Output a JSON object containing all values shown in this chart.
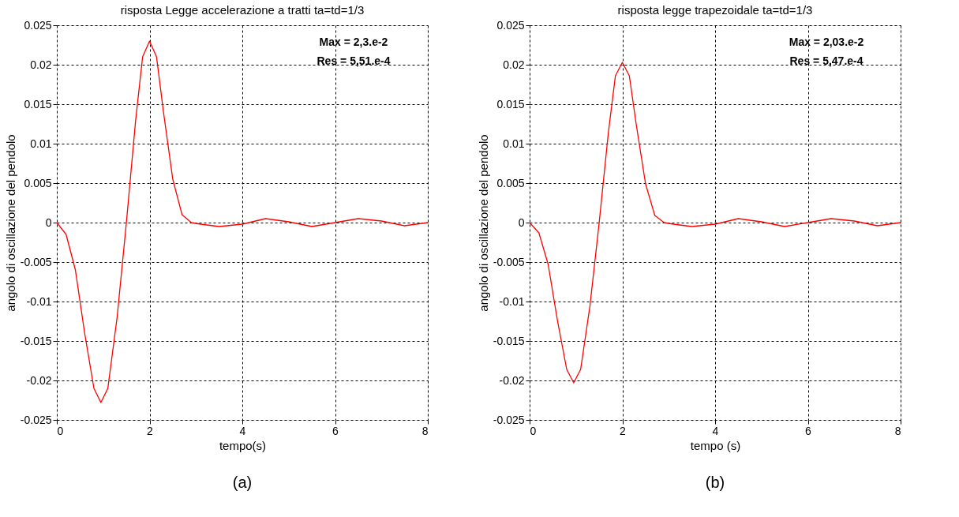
{
  "chart_data": [
    {
      "type": "line",
      "title": "risposta Legge accelerazione  a tratti ta=td=1/3",
      "xlabel": "tempo(s)",
      "ylabel": "angolo di oscillazione del pendolo",
      "x": [
        0,
        0.2,
        0.4,
        0.6,
        0.8,
        0.95,
        1.1,
        1.3,
        1.5,
        1.7,
        1.85,
        2.0,
        2.15,
        2.3,
        2.5,
        2.7,
        2.9,
        3.1,
        3.5,
        4.0,
        4.5,
        5.0,
        5.5,
        6.0,
        6.5,
        7.0,
        7.5,
        8.0
      ],
      "series": [
        {
          "color": "#ff0000",
          "values": [
            0,
            -0.0015,
            -0.006,
            -0.014,
            -0.021,
            -0.0228,
            -0.021,
            -0.012,
            0,
            0.013,
            0.021,
            0.023,
            0.021,
            0.014,
            0.0055,
            0.001,
            0,
            -0.0002,
            -0.0005,
            -0.0002,
            0.0005,
            0.0001,
            -0.0005,
            0,
            0.0005,
            0.0002,
            -0.0004,
            0
          ]
        }
      ],
      "xlim": [
        0,
        8
      ],
      "xticks": [
        0,
        2,
        4,
        6,
        8
      ],
      "ylim": [
        -0.025,
        0.025
      ],
      "yticks": [
        -0.025,
        -0.02,
        -0.015,
        -0.01,
        -0.005,
        0,
        0.005,
        0.01,
        0.015,
        0.02,
        0.025
      ],
      "grid": true,
      "line_style": "solid",
      "annotations": [
        "Max = 2,3.e-2",
        "Res = 5,51.e-4",
        "(a)"
      ]
    },
    {
      "type": "line",
      "title": "risposta legge trapezoidale ta=td=1/3",
      "xlabel": "tempo (s)",
      "ylabel": "angolo di oscillazione del pendolo",
      "x": [
        0,
        0.2,
        0.4,
        0.6,
        0.8,
        0.95,
        1.1,
        1.3,
        1.5,
        1.7,
        1.85,
        2.0,
        2.15,
        2.3,
        2.5,
        2.7,
        2.9,
        3.1,
        3.5,
        4.0,
        4.5,
        5.0,
        5.5,
        6.0,
        6.5,
        7.0,
        7.5,
        8.0
      ],
      "series": [
        {
          "color": "#ff0000",
          "values": [
            0,
            -0.0013,
            -0.0053,
            -0.0124,
            -0.0186,
            -0.0203,
            -0.0186,
            -0.0106,
            0,
            0.0115,
            0.0186,
            0.0203,
            0.0186,
            0.0124,
            0.0049,
            0.0009,
            0,
            -0.0002,
            -0.0005,
            -0.0002,
            0.0005,
            0.0001,
            -0.0005,
            0,
            0.0005,
            0.0002,
            -0.0004,
            0
          ]
        }
      ],
      "xlim": [
        0,
        8
      ],
      "xticks": [
        0,
        2,
        4,
        6,
        8
      ],
      "ylim": [
        -0.025,
        0.025
      ],
      "yticks": [
        -0.025,
        -0.02,
        -0.015,
        -0.01,
        -0.005,
        0,
        0.005,
        0.01,
        0.015,
        0.02,
        0.025
      ],
      "grid": true,
      "line_style": "solid",
      "annotations": [
        "Max = 2,03.e-2",
        "Res = 5,47.e-4",
        "(b)"
      ]
    }
  ]
}
